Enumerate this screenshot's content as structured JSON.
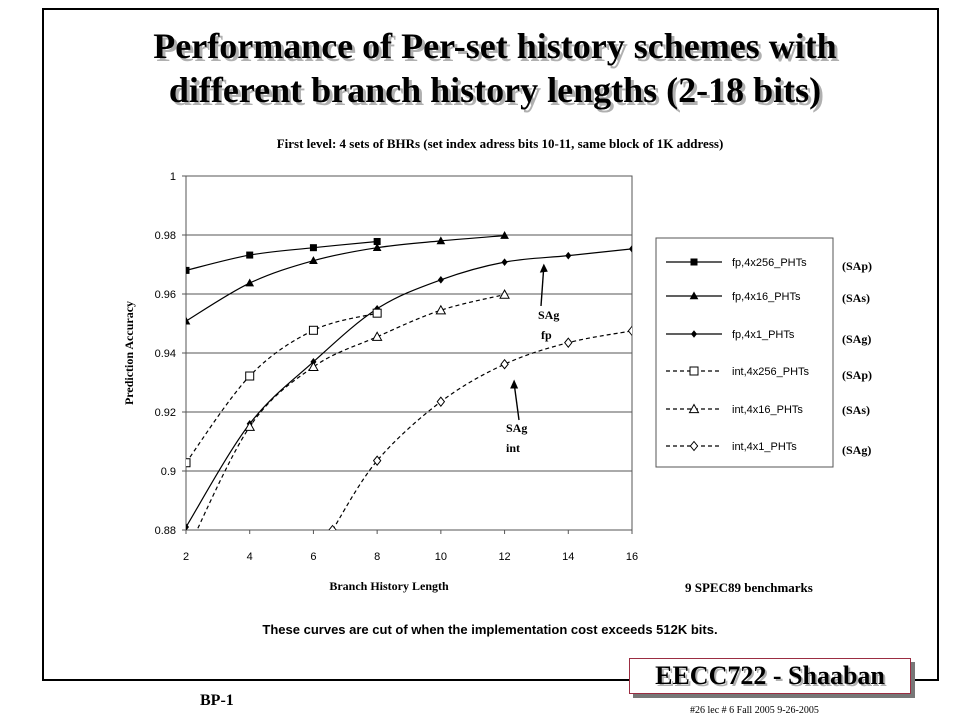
{
  "title_line1": "Performance of Per-set history schemes with",
  "title_line2": "different branch history lengths (2-18 bits)",
  "subtitle": "First level:  4 sets of BHRs    (set index adress bits 10-11,  same block of 1K address)",
  "benchmarks": "9 SPEC89 benchmarks",
  "caption": "These curves are cut of when the implementation cost exceeds 512K bits.",
  "course": "EECC722 - Shaaban",
  "footer_left": "BP-1",
  "footer_right": "#26   lec # 6   Fall 2005   9-26-2005",
  "chart_data": {
    "type": "line",
    "xlabel": "Branch History Length",
    "ylabel": "Prediction Accuracy",
    "xlim": [
      2,
      16
    ],
    "ylim": [
      0.88,
      1
    ],
    "xticks": [
      "2",
      "4",
      "6",
      "8",
      "10",
      "12",
      "14",
      "16"
    ],
    "yticks": [
      "0.88",
      "0.9",
      "0.92",
      "0.94",
      "0.96",
      "0.98",
      "1"
    ],
    "grid": "horizontal",
    "legend_position": "right",
    "series": [
      {
        "name": "fp,4x256_PHTs",
        "tag": "(SAp)",
        "style": "solid",
        "marker": "filled-square",
        "x": [
          2,
          4,
          6,
          8
        ],
        "y": [
          0.968,
          0.9732,
          0.9757,
          0.9778
        ]
      },
      {
        "name": "fp,4x16_PHTs",
        "tag": "(SAs)",
        "style": "solid",
        "marker": "filled-triangle",
        "x": [
          2,
          4,
          6,
          8,
          10,
          12
        ],
        "y": [
          0.9508,
          0.9637,
          0.9713,
          0.9757,
          0.978,
          0.9798
        ]
      },
      {
        "name": "fp,4x1_PHTs",
        "tag": "(SAg)",
        "style": "solid",
        "marker": "filled-diamond",
        "x": [
          2,
          4,
          6,
          8,
          10,
          12,
          14,
          16
        ],
        "y": [
          0.881,
          0.916,
          0.937,
          0.955,
          0.9648,
          0.9708,
          0.973,
          0.9753
        ]
      },
      {
        "name": "int,4x256_PHTs",
        "tag": "(SAp)",
        "style": "dashed",
        "marker": "open-square",
        "x": [
          2,
          4,
          6,
          8
        ],
        "y": [
          0.9028,
          0.9322,
          0.9477,
          0.9535
        ]
      },
      {
        "name": "int,4x16_PHTs",
        "tag": "(SAs)",
        "style": "dashed",
        "marker": "open-triangle",
        "x": [
          2,
          4,
          6,
          8,
          10,
          12
        ],
        "y": [
          0.872,
          0.915,
          0.9353,
          0.9455,
          0.9545,
          0.9598
        ]
      },
      {
        "name": "int,4x1_PHTs",
        "tag": "(SAg)",
        "style": "dashed",
        "marker": "open-diamond",
        "x": [
          6.6,
          8,
          10,
          12,
          14,
          16
        ],
        "y": [
          0.88,
          0.9035,
          0.9235,
          0.9362,
          0.9435,
          0.9475
        ]
      }
    ],
    "annotations": [
      {
        "text_line1": "SAg",
        "text_line2": "fp",
        "arrow_to": [
          13.2,
          0.9703
        ]
      },
      {
        "text_line1": "SAg",
        "text_line2": "int",
        "arrow_to": [
          12.3,
          0.931
        ]
      }
    ]
  }
}
